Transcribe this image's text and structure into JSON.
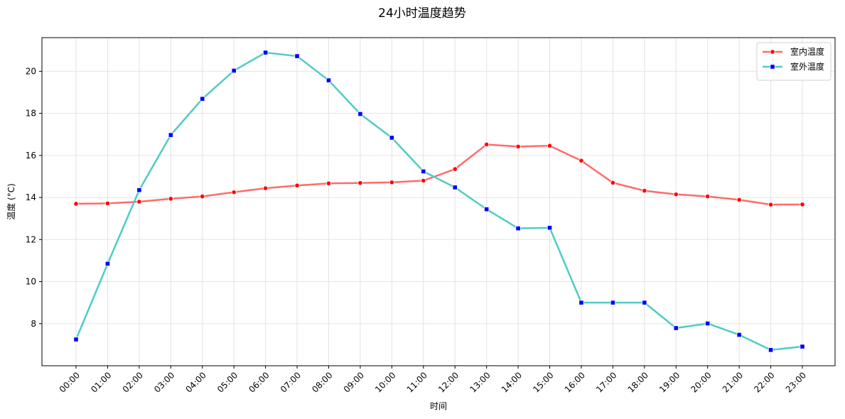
{
  "chart_data": {
    "type": "line",
    "title": "24小时温度趋势",
    "xlabel": "时间",
    "ylabel": "温度 (°C)",
    "categories": [
      "00:00",
      "01:00",
      "02:00",
      "03:00",
      "04:00",
      "05:00",
      "06:00",
      "07:00",
      "08:00",
      "09:00",
      "10:00",
      "11:00",
      "12:00",
      "13:00",
      "14:00",
      "15:00",
      "16:00",
      "17:00",
      "18:00",
      "19:00",
      "20:00",
      "21:00",
      "22:00",
      "23:00"
    ],
    "yticks": [
      8,
      10,
      12,
      14,
      16,
      18,
      20
    ],
    "ylim": [
      6.0,
      21.6
    ],
    "grid": true,
    "legend_position": "top-right",
    "series": [
      {
        "name": "室内温度",
        "color": "#ff6b6b",
        "marker_color": "#ff0000",
        "marker": "circle",
        "values": [
          13.7,
          13.72,
          13.8,
          13.94,
          14.05,
          14.25,
          14.44,
          14.57,
          14.67,
          14.69,
          14.72,
          14.8,
          15.35,
          16.52,
          16.42,
          16.46,
          15.75,
          14.7,
          14.32,
          14.15,
          14.05,
          13.89,
          13.66,
          13.67
        ]
      },
      {
        "name": "室外温度",
        "color": "#4ecdc4",
        "marker_color": "#0000ff",
        "marker": "square",
        "values": [
          7.25,
          10.85,
          14.35,
          16.97,
          18.69,
          20.03,
          20.89,
          20.72,
          19.57,
          17.97,
          16.84,
          15.24,
          14.48,
          13.44,
          12.53,
          12.56,
          9.0,
          9.0,
          9.0,
          7.79,
          8.01,
          7.47,
          6.75,
          6.91
        ]
      }
    ]
  }
}
